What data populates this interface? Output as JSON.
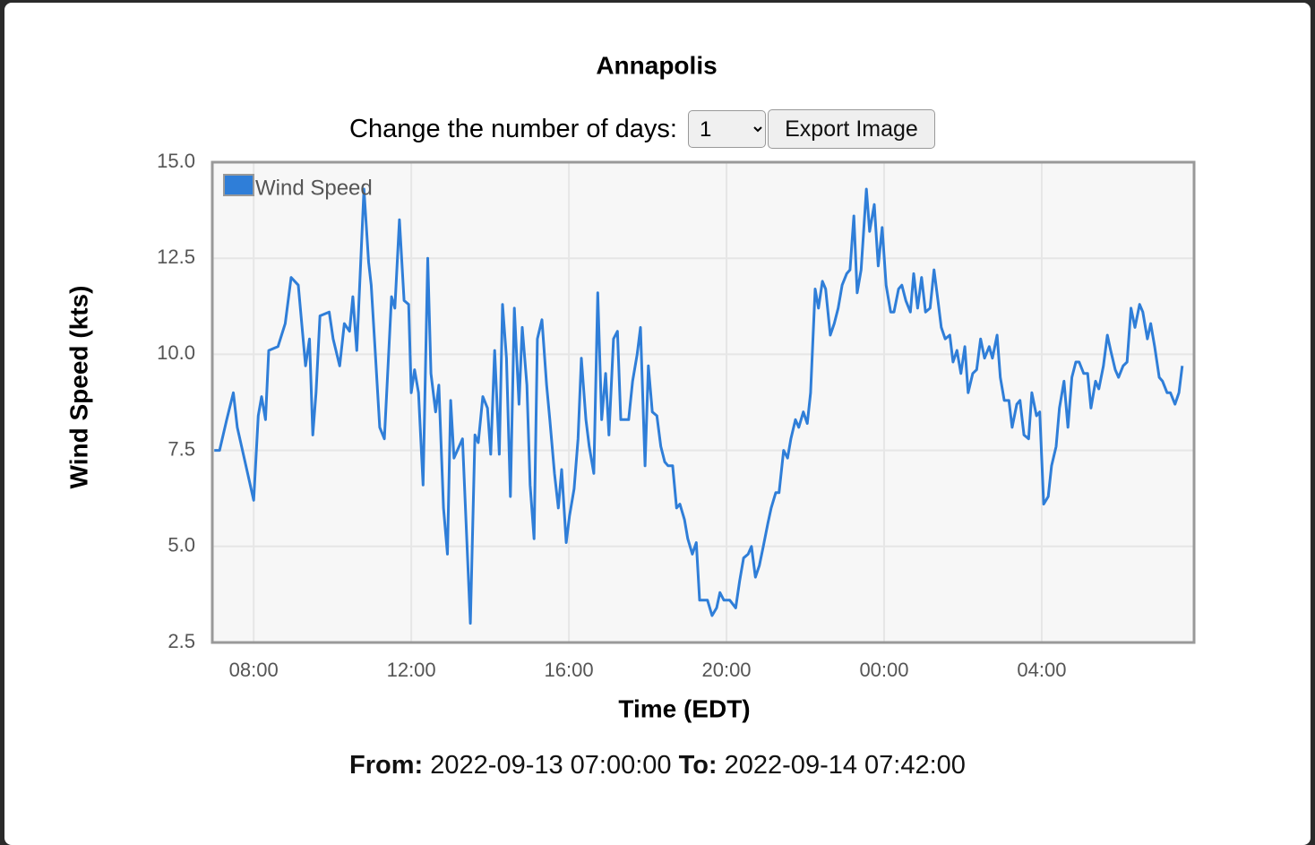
{
  "controls": {
    "days_label": "Change the number of days:",
    "days_value": "1",
    "export_button": "Export Image"
  },
  "chart_data": {
    "type": "line",
    "title": "Annapolis",
    "xlabel": "Time (EDT)",
    "ylabel": "Wind Speed (kts)",
    "legend": "upper left",
    "grid": true,
    "xlim": [
      "2022-09-13 06:57",
      "2022-09-14 07:52"
    ],
    "xticks": [
      {
        "value": "2022-09-13 08:00",
        "label": "08:00"
      },
      {
        "value": "2022-09-13 12:00",
        "label": "12:00"
      },
      {
        "value": "2022-09-13 16:00",
        "label": "16:00"
      },
      {
        "value": "2022-09-13 20:00",
        "label": "20:00"
      },
      {
        "value": "2022-09-14 00:00",
        "label": "00:00"
      },
      {
        "value": "2022-09-14 04:00",
        "label": "04:00"
      }
    ],
    "ylim": [
      2.5,
      15
    ],
    "yticks": [
      {
        "value": 15,
        "label": "15.0"
      },
      12.5,
      {
        "value": 10,
        "label": "10.0"
      },
      7.5,
      {
        "value": 5,
        "label": "5.0"
      },
      2.5
    ],
    "series": [
      {
        "name": "Wind Speed",
        "color": "#2f7ed8",
        "x": [
          "2022-09-13 07:00",
          "2022-09-13 07:08",
          "2022-09-13 07:19",
          "2022-09-13 07:29",
          "2022-09-13 07:35",
          "2022-09-13 08:00",
          "2022-09-13 08:07",
          "2022-09-13 08:12",
          "2022-09-13 08:18",
          "2022-09-13 08:23",
          "2022-09-13 08:37",
          "2022-09-13 08:48",
          "2022-09-13 08:57",
          "2022-09-13 09:08",
          "2022-09-13 09:19",
          "2022-09-13 09:25",
          "2022-09-13 09:30",
          "2022-09-13 09:35",
          "2022-09-13 09:41",
          "2022-09-13 09:55",
          "2022-09-13 10:01",
          "2022-09-13 10:11",
          "2022-09-13 10:18",
          "2022-09-13 10:26",
          "2022-09-13 10:31",
          "2022-09-13 10:37",
          "2022-09-13 10:48",
          "2022-09-13 10:55",
          "2022-09-13 10:59",
          "2022-09-13 11:05",
          "2022-09-13 11:12",
          "2022-09-13 11:19",
          "2022-09-13 11:30",
          "2022-09-13 11:35",
          "2022-09-13 11:42",
          "2022-09-13 11:49",
          "2022-09-13 11:56",
          "2022-09-13 12:00",
          "2022-09-13 12:05",
          "2022-09-13 12:11",
          "2022-09-13 12:18",
          "2022-09-13 12:25",
          "2022-09-13 12:30",
          "2022-09-13 12:37",
          "2022-09-13 12:42",
          "2022-09-13 12:49",
          "2022-09-13 12:55",
          "2022-09-13 13:00",
          "2022-09-13 13:05",
          "2022-09-13 13:18",
          "2022-09-13 13:30",
          "2022-09-13 13:37",
          "2022-09-13 13:42",
          "2022-09-13 13:49",
          "2022-09-13 13:56",
          "2022-09-13 14:01",
          "2022-09-13 14:07",
          "2022-09-13 14:14",
          "2022-09-13 14:19",
          "2022-09-13 14:25",
          "2022-09-13 14:31",
          "2022-09-13 14:37",
          "2022-09-13 14:44",
          "2022-09-13 14:49",
          "2022-09-13 14:56",
          "2022-09-13 15:01",
          "2022-09-13 15:07",
          "2022-09-13 15:12",
          "2022-09-13 15:19",
          "2022-09-13 15:26",
          "2022-09-13 15:31",
          "2022-09-13 15:38",
          "2022-09-13 15:44",
          "2022-09-13 15:49",
          "2022-09-13 15:56",
          "2022-09-13 16:01",
          "2022-09-13 16:08",
          "2022-09-13 16:14",
          "2022-09-13 16:19",
          "2022-09-13 16:26",
          "2022-09-13 16:31",
          "2022-09-13 16:38",
          "2022-09-13 16:44",
          "2022-09-13 16:50",
          "2022-09-13 16:56",
          "2022-09-13 17:01",
          "2022-09-13 17:08",
          "2022-09-13 17:14",
          "2022-09-13 17:19",
          "2022-09-13 17:25",
          "2022-09-13 17:31",
          "2022-09-13 17:37",
          "2022-09-13 17:44",
          "2022-09-13 17:49",
          "2022-09-13 17:56",
          "2022-09-13 18:01",
          "2022-09-13 18:07",
          "2022-09-13 18:14",
          "2022-09-13 18:20",
          "2022-09-13 18:26",
          "2022-09-13 18:31",
          "2022-09-13 18:38",
          "2022-09-13 18:44",
          "2022-09-13 18:49",
          "2022-09-13 18:56",
          "2022-09-13 19:01",
          "2022-09-13 19:08",
          "2022-09-13 19:14",
          "2022-09-13 19:19",
          "2022-09-13 19:31",
          "2022-09-13 19:38",
          "2022-09-13 19:45",
          "2022-09-13 19:50",
          "2022-09-13 19:56",
          "2022-09-13 20:05",
          "2022-09-13 20:14",
          "2022-09-13 20:20",
          "2022-09-13 20:26",
          "2022-09-13 20:33",
          "2022-09-13 20:38",
          "2022-09-13 20:44",
          "2022-09-13 20:50",
          "2022-09-13 20:56",
          "2022-09-13 21:03",
          "2022-09-13 21:08",
          "2022-09-13 21:15",
          "2022-09-13 21:20",
          "2022-09-13 21:27",
          "2022-09-13 21:33",
          "2022-09-13 21:38",
          "2022-09-13 21:45",
          "2022-09-13 21:50",
          "2022-09-13 21:57",
          "2022-09-13 22:03",
          "2022-09-13 22:08",
          "2022-09-13 22:15",
          "2022-09-13 22:20",
          "2022-09-13 22:26",
          "2022-09-13 22:31",
          "2022-09-13 22:38",
          "2022-09-13 22:44",
          "2022-09-13 22:50",
          "2022-09-13 22:56",
          "2022-09-13 23:03",
          "2022-09-13 23:08",
          "2022-09-13 23:14",
          "2022-09-13 23:19",
          "2022-09-13 23:25",
          "2022-09-13 23:33",
          "2022-09-13 23:38",
          "2022-09-13 23:45",
          "2022-09-13 23:51",
          "2022-09-13 23:57",
          "2022-09-14 00:03",
          "2022-09-14 00:10",
          "2022-09-14 00:15",
          "2022-09-14 00:22",
          "2022-09-14 00:27",
          "2022-09-14 00:33",
          "2022-09-14 00:40",
          "2022-09-14 00:45",
          "2022-09-14 00:51",
          "2022-09-14 00:57",
          "2022-09-14 01:03",
          "2022-09-14 01:10",
          "2022-09-14 01:16",
          "2022-09-14 01:22",
          "2022-09-14 01:27",
          "2022-09-14 01:33",
          "2022-09-14 01:40",
          "2022-09-14 01:45",
          "2022-09-14 01:51",
          "2022-09-14 01:57",
          "2022-09-14 02:03",
          "2022-09-14 02:08",
          "2022-09-14 02:15",
          "2022-09-14 02:21",
          "2022-09-14 02:27",
          "2022-09-14 02:33",
          "2022-09-14 02:40",
          "2022-09-14 02:45",
          "2022-09-14 02:52",
          "2022-09-14 02:57",
          "2022-09-14 03:03",
          "2022-09-14 03:10",
          "2022-09-14 03:15",
          "2022-09-14 03:22",
          "2022-09-14 03:27",
          "2022-09-14 03:33",
          "2022-09-14 03:40",
          "2022-09-14 03:45",
          "2022-09-14 03:52",
          "2022-09-14 03:57",
          "2022-09-14 04:03",
          "2022-09-14 04:10",
          "2022-09-14 04:15",
          "2022-09-14 04:22",
          "2022-09-14 04:27",
          "2022-09-14 04:34",
          "2022-09-14 04:40",
          "2022-09-14 04:46",
          "2022-09-14 04:52",
          "2022-09-14 04:57",
          "2022-09-14 05:04",
          "2022-09-14 05:10",
          "2022-09-14 05:15",
          "2022-09-14 05:22",
          "2022-09-14 05:27",
          "2022-09-14 05:34",
          "2022-09-14 05:40",
          "2022-09-14 05:45",
          "2022-09-14 05:52",
          "2022-09-14 05:57",
          "2022-09-14 06:04",
          "2022-09-14 06:10",
          "2022-09-14 06:16",
          "2022-09-14 06:22",
          "2022-09-14 06:29",
          "2022-09-14 06:34",
          "2022-09-14 06:41",
          "2022-09-14 06:46",
          "2022-09-14 06:52",
          "2022-09-14 06:59",
          "2022-09-14 07:04",
          "2022-09-14 07:11",
          "2022-09-14 07:16",
          "2022-09-14 07:23",
          "2022-09-14 07:29",
          "2022-09-14 07:34"
        ],
        "values": [
          7.5,
          7.5,
          8.3,
          9.0,
          8.1,
          6.2,
          8.4,
          8.9,
          8.3,
          10.1,
          10.2,
          10.8,
          12.0,
          11.8,
          9.7,
          10.4,
          7.9,
          9.0,
          11.0,
          11.1,
          10.4,
          9.7,
          10.8,
          10.6,
          11.5,
          10.1,
          14.3,
          12.4,
          11.8,
          10.1,
          8.1,
          7.8,
          11.5,
          11.2,
          13.5,
          11.4,
          11.3,
          9.0,
          9.6,
          9.0,
          6.6,
          12.5,
          9.5,
          8.5,
          9.2,
          6.0,
          4.8,
          8.8,
          7.3,
          7.8,
          3.0,
          7.9,
          7.7,
          8.9,
          8.6,
          7.4,
          10.1,
          7.4,
          11.3,
          9.9,
          6.3,
          11.2,
          8.7,
          10.7,
          9.2,
          6.6,
          5.2,
          10.4,
          10.9,
          9.2,
          8.3,
          6.9,
          6.0,
          7.0,
          5.1,
          5.8,
          6.5,
          7.8,
          9.9,
          8.3,
          7.6,
          6.9,
          11.6,
          8.3,
          9.5,
          7.9,
          10.4,
          10.6,
          8.3,
          8.3,
          8.3,
          9.3,
          10.0,
          10.7,
          7.1,
          9.7,
          8.5,
          8.4,
          7.6,
          7.2,
          7.1,
          7.1,
          6.0,
          6.1,
          5.7,
          5.2,
          4.8,
          5.1,
          3.6,
          3.6,
          3.2,
          3.4,
          3.8,
          3.6,
          3.6,
          3.4,
          4.1,
          4.7,
          4.8,
          5.0,
          4.2,
          4.5,
          5.0,
          5.6,
          6.0,
          6.4,
          6.4,
          7.5,
          7.3,
          7.8,
          8.3,
          8.1,
          8.5,
          8.2,
          9.0,
          11.7,
          11.2,
          11.9,
          11.7,
          10.5,
          10.8,
          11.2,
          11.8,
          12.1,
          12.2,
          13.6,
          11.6,
          12.2,
          14.3,
          13.2,
          13.9,
          12.3,
          13.3,
          11.8,
          11.1,
          11.1,
          11.7,
          11.8,
          11.4,
          11.1,
          12.1,
          11.2,
          12.0,
          11.1,
          11.2,
          12.2,
          11.4,
          10.7,
          10.4,
          10.5,
          9.8,
          10.1,
          9.5,
          10.2,
          9.0,
          9.5,
          9.6,
          10.4,
          9.9,
          10.2,
          9.9,
          10.5,
          9.4,
          8.8,
          8.8,
          8.1,
          8.7,
          8.8,
          7.9,
          7.8,
          9.0,
          8.4,
          8.5,
          6.1,
          6.3,
          7.1,
          7.6,
          8.6,
          9.3,
          8.1,
          9.4,
          9.8,
          9.8,
          9.5,
          9.5,
          8.6,
          9.3,
          9.1,
          9.7,
          10.5,
          10.1,
          9.6,
          9.4,
          9.7,
          9.8,
          11.2,
          10.7,
          11.3,
          11.1,
          10.4,
          10.8,
          10.2,
          9.4,
          9.3,
          9.0,
          9.0,
          8.7,
          9.0,
          9.7
        ]
      }
    ]
  },
  "footer": {
    "from_label": "From:",
    "from": "2022-09-13 07:00:00",
    "to_label": "To:",
    "to": "2022-09-14 07:42:00"
  }
}
